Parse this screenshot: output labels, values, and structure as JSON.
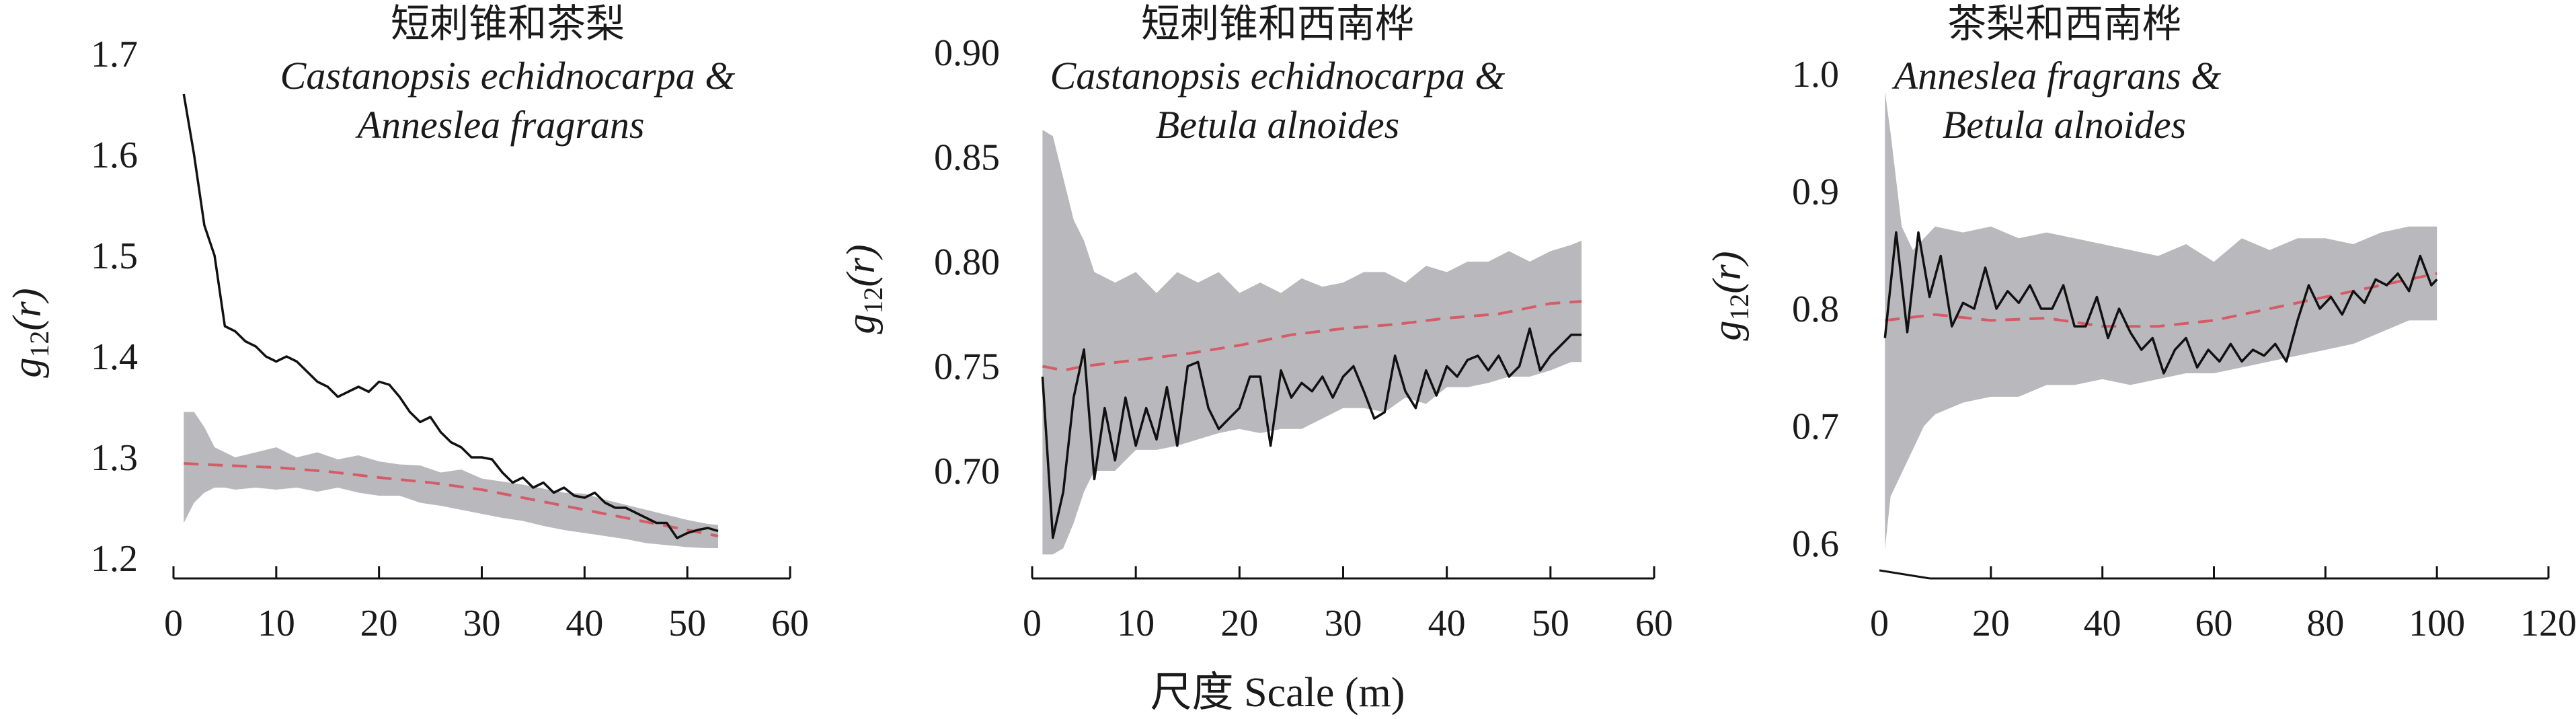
{
  "chart_data": [
    {
      "type": "line",
      "title": "短刺锥和茶梨",
      "subtitle": [
        "Castanopsis echidnocarpa &",
        "Anneslea fragrans"
      ],
      "ylabel": {
        "base": "g",
        "sub": "12",
        "arg": "(r)"
      },
      "xlim": [
        0,
        60
      ],
      "ylim": [
        1.2,
        1.7
      ],
      "xticks": [
        0,
        10,
        20,
        30,
        40,
        50,
        60
      ],
      "yticks": [
        1.2,
        1.3,
        1.4,
        1.5,
        1.6,
        1.7
      ],
      "ytick_labels": [
        "1.2",
        "1.3",
        "1.4",
        "1.5",
        "1.6",
        "1.7"
      ],
      "grid": false,
      "series": [
        {
          "role": "observed",
          "color": "#111111",
          "style": "solid",
          "x": [
            1,
            2,
            3,
            4,
            5,
            6,
            7,
            8,
            9,
            10,
            11,
            12,
            13,
            14,
            15,
            16,
            17,
            18,
            19,
            20,
            21,
            22,
            23,
            24,
            25,
            26,
            27,
            28,
            29,
            30,
            31,
            32,
            33,
            34,
            35,
            36,
            37,
            38,
            39,
            40,
            41,
            42,
            43,
            44,
            45,
            46,
            47,
            48,
            49,
            50,
            51,
            52,
            53
          ],
          "y": [
            1.66,
            1.6,
            1.53,
            1.5,
            1.43,
            1.425,
            1.415,
            1.41,
            1.4,
            1.395,
            1.4,
            1.395,
            1.385,
            1.375,
            1.37,
            1.36,
            1.365,
            1.37,
            1.365,
            1.375,
            1.372,
            1.36,
            1.345,
            1.335,
            1.34,
            1.325,
            1.315,
            1.31,
            1.3,
            1.3,
            1.298,
            1.285,
            1.275,
            1.28,
            1.27,
            1.275,
            1.265,
            1.27,
            1.262,
            1.26,
            1.265,
            1.255,
            1.25,
            1.25,
            1.245,
            1.24,
            1.235,
            1.235,
            1.22,
            1.225,
            1.228,
            1.23,
            1.227
          ]
        },
        {
          "role": "theoretical",
          "color": "#d45c68",
          "style": "dashed",
          "x": [
            1,
            5,
            10,
            15,
            20,
            25,
            30,
            35,
            40,
            45,
            50,
            53
          ],
          "y": [
            1.294,
            1.292,
            1.29,
            1.286,
            1.28,
            1.275,
            1.268,
            1.258,
            1.248,
            1.238,
            1.228,
            1.222
          ]
        },
        {
          "role": "envelope",
          "color": "#b9b9bd",
          "fill": true,
          "x": [
            1,
            2,
            3,
            4,
            5,
            6,
            8,
            10,
            12,
            14,
            16,
            18,
            20,
            22,
            24,
            26,
            28,
            30,
            32,
            34,
            36,
            38,
            40,
            42,
            44,
            46,
            48,
            50,
            52,
            53
          ],
          "upper": [
            1.345,
            1.345,
            1.33,
            1.31,
            1.305,
            1.3,
            1.305,
            1.31,
            1.3,
            1.305,
            1.298,
            1.302,
            1.296,
            1.293,
            1.292,
            1.285,
            1.288,
            1.279,
            1.276,
            1.273,
            1.269,
            1.265,
            1.264,
            1.258,
            1.253,
            1.248,
            1.243,
            1.238,
            1.234,
            1.233
          ],
          "lower": [
            1.235,
            1.255,
            1.265,
            1.27,
            1.27,
            1.268,
            1.27,
            1.268,
            1.27,
            1.266,
            1.27,
            1.265,
            1.262,
            1.262,
            1.255,
            1.252,
            1.248,
            1.244,
            1.24,
            1.237,
            1.232,
            1.228,
            1.225,
            1.222,
            1.219,
            1.215,
            1.213,
            1.211,
            1.21,
            1.21
          ]
        }
      ]
    },
    {
      "type": "line",
      "title": "短刺锥和西南桦",
      "subtitle": [
        "Castanopsis echidnocarpa &",
        "Betula alnoides"
      ],
      "ylabel": {
        "base": "g",
        "sub": "12",
        "arg": "(r)"
      },
      "xlim": [
        0,
        60
      ],
      "ylim": [
        0.66,
        0.9
      ],
      "xticks": [
        0,
        10,
        20,
        30,
        40,
        50,
        60
      ],
      "yticks": [
        0.7,
        0.75,
        0.8,
        0.85,
        0.9
      ],
      "ytick_labels": [
        "0.70",
        "0.75",
        "0.80",
        "0.85",
        "0.90"
      ],
      "grid": false,
      "series": [
        {
          "role": "observed",
          "color": "#111111",
          "style": "solid",
          "x": [
            1,
            2,
            3,
            4,
            5,
            6,
            7,
            8,
            9,
            10,
            11,
            12,
            13,
            14,
            15,
            16,
            17,
            18,
            19,
            20,
            21,
            22,
            23,
            24,
            25,
            26,
            27,
            28,
            29,
            30,
            31,
            32,
            33,
            34,
            35,
            36,
            37,
            38,
            39,
            40,
            41,
            42,
            43,
            44,
            45,
            46,
            47,
            48,
            49,
            50,
            51,
            52,
            53
          ],
          "y": [
            0.745,
            0.668,
            0.69,
            0.735,
            0.758,
            0.696,
            0.73,
            0.705,
            0.735,
            0.712,
            0.73,
            0.715,
            0.74,
            0.712,
            0.75,
            0.752,
            0.73,
            0.72,
            0.725,
            0.73,
            0.745,
            0.745,
            0.712,
            0.748,
            0.735,
            0.742,
            0.738,
            0.745,
            0.735,
            0.745,
            0.75,
            0.738,
            0.725,
            0.728,
            0.755,
            0.738,
            0.73,
            0.748,
            0.736,
            0.75,
            0.745,
            0.753,
            0.755,
            0.748,
            0.755,
            0.745,
            0.75,
            0.768,
            0.748,
            0.755,
            0.76,
            0.765,
            0.765
          ]
        },
        {
          "role": "theoretical",
          "color": "#d45c68",
          "style": "dashed",
          "x": [
            1,
            3,
            5,
            10,
            15,
            20,
            25,
            30,
            35,
            40,
            45,
            50,
            53
          ],
          "y": [
            0.75,
            0.748,
            0.75,
            0.753,
            0.756,
            0.76,
            0.765,
            0.768,
            0.77,
            0.773,
            0.775,
            0.78,
            0.781
          ]
        },
        {
          "role": "envelope",
          "color": "#b9b9bd",
          "fill": true,
          "x": [
            1,
            2,
            3,
            4,
            5,
            6,
            8,
            10,
            12,
            14,
            16,
            18,
            20,
            22,
            24,
            26,
            28,
            30,
            32,
            34,
            36,
            38,
            40,
            42,
            44,
            46,
            48,
            50,
            52,
            53
          ],
          "upper": [
            0.863,
            0.86,
            0.84,
            0.82,
            0.81,
            0.795,
            0.79,
            0.795,
            0.785,
            0.795,
            0.79,
            0.795,
            0.785,
            0.79,
            0.785,
            0.792,
            0.788,
            0.79,
            0.795,
            0.795,
            0.79,
            0.798,
            0.795,
            0.8,
            0.8,
            0.805,
            0.8,
            0.805,
            0.808,
            0.81
          ],
          "lower": [
            0.66,
            0.66,
            0.663,
            0.675,
            0.69,
            0.7,
            0.7,
            0.71,
            0.71,
            0.712,
            0.715,
            0.718,
            0.72,
            0.718,
            0.72,
            0.72,
            0.725,
            0.73,
            0.73,
            0.728,
            0.735,
            0.732,
            0.74,
            0.74,
            0.742,
            0.745,
            0.745,
            0.748,
            0.752,
            0.752
          ]
        }
      ]
    },
    {
      "type": "line",
      "title": "茶梨和西南桦",
      "subtitle": [
        "Anneslea fragrans &",
        "Betula alnoides"
      ],
      "ylabel": {
        "base": "g",
        "sub": "12",
        "arg": "(r)"
      },
      "xlim": [
        0,
        120
      ],
      "ylim": [
        0.58,
        1.0
      ],
      "xticks": [
        0,
        20,
        40,
        60,
        80,
        100,
        120
      ],
      "yticks": [
        0.6,
        0.7,
        0.8,
        0.9,
        1.0
      ],
      "ytick_labels": [
        "0.6",
        "0.7",
        "0.8",
        "0.9",
        "1.0"
      ],
      "grid": false,
      "series": [
        {
          "role": "observed",
          "color": "#111111",
          "style": "solid",
          "x": [
            1,
            3,
            5,
            7,
            9,
            11,
            13,
            15,
            17,
            19,
            21,
            23,
            25,
            27,
            29,
            31,
            33,
            35,
            37,
            39,
            41,
            43,
            45,
            47,
            49,
            51,
            53,
            55,
            57,
            59,
            61,
            63,
            65,
            67,
            69,
            71,
            73,
            75,
            77,
            79,
            81,
            83,
            85,
            87,
            89,
            91,
            93,
            95,
            97,
            99,
            100
          ],
          "y": [
            0.775,
            0.865,
            0.78,
            0.865,
            0.81,
            0.845,
            0.785,
            0.805,
            0.8,
            0.835,
            0.8,
            0.815,
            0.805,
            0.82,
            0.8,
            0.8,
            0.82,
            0.785,
            0.785,
            0.81,
            0.775,
            0.8,
            0.78,
            0.765,
            0.775,
            0.745,
            0.765,
            0.775,
            0.75,
            0.765,
            0.755,
            0.77,
            0.755,
            0.765,
            0.76,
            0.77,
            0.755,
            0.79,
            0.82,
            0.8,
            0.81,
            0.795,
            0.815,
            0.805,
            0.825,
            0.82,
            0.83,
            0.815,
            0.845,
            0.82,
            0.825
          ]
        },
        {
          "role": "theoretical",
          "color": "#d45c68",
          "style": "dashed",
          "x": [
            1,
            10,
            20,
            30,
            40,
            50,
            60,
            70,
            80,
            90,
            100
          ],
          "y": [
            0.79,
            0.795,
            0.79,
            0.792,
            0.785,
            0.785,
            0.79,
            0.8,
            0.81,
            0.82,
            0.83
          ]
        },
        {
          "role": "envelope",
          "color": "#b9b9bd",
          "fill": true,
          "x": [
            1,
            2,
            4,
            6,
            8,
            10,
            15,
            20,
            25,
            30,
            35,
            40,
            45,
            50,
            55,
            60,
            65,
            70,
            75,
            80,
            85,
            90,
            95,
            100
          ],
          "upper": [
            0.985,
            0.95,
            0.87,
            0.85,
            0.86,
            0.87,
            0.865,
            0.87,
            0.86,
            0.865,
            0.86,
            0.855,
            0.85,
            0.845,
            0.855,
            0.84,
            0.86,
            0.85,
            0.86,
            0.86,
            0.855,
            0.865,
            0.87,
            0.87
          ],
          "lower": [
            0.595,
            0.64,
            0.66,
            0.68,
            0.7,
            0.71,
            0.72,
            0.725,
            0.725,
            0.735,
            0.735,
            0.74,
            0.735,
            0.74,
            0.745,
            0.745,
            0.75,
            0.755,
            0.76,
            0.765,
            0.77,
            0.78,
            0.79,
            0.79
          ]
        }
      ]
    }
  ],
  "shared_xlabel": "尺度 Scale (m)"
}
